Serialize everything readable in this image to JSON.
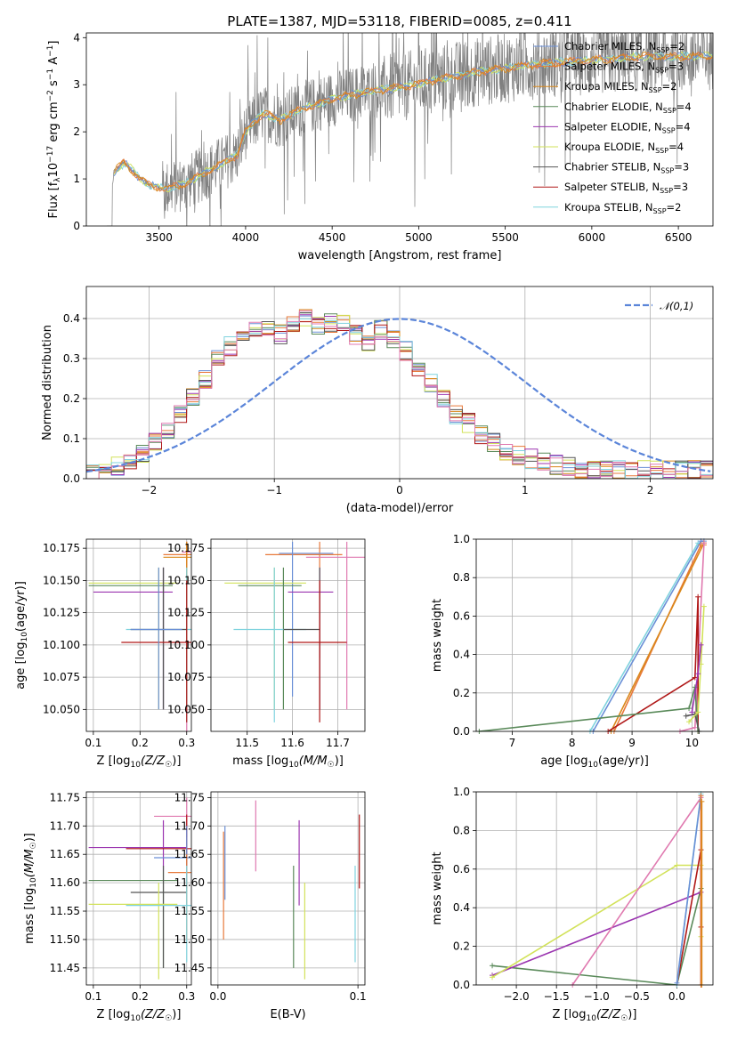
{
  "figure": {
    "title": "PLATE=1387, MJD=53118, FIBERID=0085, z=0.411"
  },
  "colors": {
    "chabrier_miles": "#6a8fd6",
    "salpeter_miles": "#e8793a",
    "kroupa_miles": "#d9881a",
    "chabrier_elodie": "#5a8a5a",
    "salpeter_elodie": "#9b35b0",
    "kroupa_elodie": "#d2e25a",
    "chabrier_stelib": "#555555",
    "salpeter_stelib": "#b01818",
    "kroupa_stelib": "#7fd3de",
    "pink": "#e07ab0",
    "gray_data": "#808080",
    "normal_curve": "#5b85d9"
  },
  "chart_data": [
    {
      "id": "spectrum",
      "type": "line",
      "xlabel": "wavelength [Angstrom, rest frame]",
      "ylabel": "Flux [f_λ 10^-17 erg cm^-2 s^-1 A^-1]",
      "xlim": [
        3080,
        6700
      ],
      "ylim": [
        0,
        4.1
      ],
      "xticks": [
        3500,
        4000,
        4500,
        5000,
        5500,
        6000,
        6500
      ],
      "yticks": [
        0,
        1,
        2,
        3,
        4
      ],
      "grid": false,
      "legend_position": "top-right",
      "continuum_nodes": {
        "x": [
          3080,
          3200,
          3240,
          3300,
          3380,
          3450,
          3550,
          3650,
          3750,
          3850,
          3950,
          4000,
          4100,
          4200,
          4300,
          4500,
          4700,
          4900,
          5100,
          5300,
          5500,
          5700,
          5900,
          6100,
          6300,
          6500,
          6700
        ],
        "y": [
          0,
          0,
          1.15,
          1.35,
          1.05,
          0.85,
          0.8,
          0.9,
          1.1,
          1.3,
          1.5,
          2.0,
          2.4,
          2.25,
          2.45,
          2.7,
          2.85,
          2.95,
          3.1,
          3.25,
          3.35,
          3.45,
          3.5,
          3.55,
          3.6,
          3.6,
          3.6
        ]
      },
      "series": [
        {
          "name": "Chabrier MILES, N_SSP=2"
        },
        {
          "name": "Salpeter MILES, N_SSP=3"
        },
        {
          "name": "Kroupa MILES, N_SSP=2"
        },
        {
          "name": "Chabrier ELODIE, N_SSP=4"
        },
        {
          "name": "Salpeter ELODIE, N_SSP=4"
        },
        {
          "name": "Kroupa ELODIE, N_SSP=4"
        },
        {
          "name": "Chabrier STELIB, N_SSP=3"
        },
        {
          "name": "Salpeter STELIB, N_SSP=3"
        },
        {
          "name": "Kroupa STELIB, N_SSP=2"
        }
      ]
    },
    {
      "id": "residuals",
      "type": "line",
      "xlabel": "(data-model)/error",
      "ylabel": "Normed distribution",
      "xlim": [
        -2.5,
        2.5
      ],
      "ylim": [
        0,
        0.48
      ],
      "xticks": [
        -2,
        -1,
        0,
        1,
        2
      ],
      "yticks": [
        0.0,
        0.1,
        0.2,
        0.3,
        0.4
      ],
      "grid": true,
      "legend_position": "top-right",
      "legend": "N(0,1)",
      "bin_width": 0.1,
      "histogram_base": [
        0.01,
        0.015,
        0.02,
        0.02,
        0.03,
        0.035,
        0.045,
        0.05,
        0.06,
        0.07,
        0.09,
        0.11,
        0.12,
        0.14,
        0.16,
        0.18,
        0.2,
        0.22,
        0.25,
        0.28,
        0.3,
        0.32,
        0.33,
        0.34,
        0.36,
        0.37,
        0.38,
        0.39,
        0.38,
        0.37,
        0.36,
        0.37,
        0.39,
        0.4,
        0.4,
        0.39,
        0.38,
        0.37,
        0.39,
        0.41,
        0.39,
        0.37,
        0.36,
        0.35,
        0.34,
        0.35,
        0.37,
        0.36,
        0.35,
        0.34,
        0.32,
        0.3,
        0.28,
        0.26,
        0.24,
        0.22,
        0.2,
        0.18,
        0.16,
        0.15,
        0.14,
        0.12,
        0.11,
        0.1,
        0.09,
        0.08,
        0.07,
        0.065,
        0.06,
        0.055,
        0.05,
        0.045,
        0.04,
        0.04,
        0.035,
        0.03,
        0.03,
        0.03,
        0.025,
        0.025,
        0.02,
        0.02,
        0.02,
        0.02,
        0.02,
        0.02,
        0.02,
        0.02,
        0.02,
        0.02,
        0.02,
        0.02,
        0.02,
        0.02,
        0.02,
        0.02,
        0.02,
        0.02,
        0.02,
        0.02
      ],
      "histogram_start": -2.5
    },
    {
      "id": "age_vs_Z",
      "type": "scatter",
      "xlabel": "Z [log10(Z/Z_sun)]",
      "ylabel": "age [log10(age/yr)]",
      "xlim": [
        0.085,
        0.31
      ],
      "ylim": [
        10.033,
        10.182
      ],
      "xticks": [
        0.1,
        0.2,
        0.3
      ],
      "yticks": [
        10.05,
        10.075,
        10.1,
        10.125,
        10.15,
        10.175
      ],
      "grid": true,
      "points": [
        {
          "x": 0.3,
          "y": 10.172,
          "xerr": [
            0.29,
            0.31
          ],
          "yerr": [
            10.03,
            10.18
          ],
          "c": "pink"
        },
        {
          "x": 0.3,
          "y": 10.17,
          "xerr": [
            0.25,
            0.31
          ],
          "yerr": [
            10.09,
            10.18
          ],
          "c": "salpeter_miles"
        },
        {
          "x": 0.3,
          "y": 10.168,
          "xerr": [
            0.25,
            0.31
          ],
          "yerr": [
            10.05,
            10.18
          ],
          "c": "kroupa_miles"
        },
        {
          "x": 0.24,
          "y": 10.148,
          "xerr": [
            0.09,
            0.28
          ],
          "yerr": [
            10.05,
            10.16
          ],
          "c": "kroupa_elodie"
        },
        {
          "x": 0.25,
          "y": 10.146,
          "xerr": [
            0.09,
            0.27
          ],
          "yerr": [
            10.05,
            10.16
          ],
          "c": "chabrier_elodie"
        },
        {
          "x": 0.25,
          "y": 10.141,
          "xerr": [
            0.1,
            0.27
          ],
          "yerr": [
            10.05,
            10.16
          ],
          "c": "salpeter_elodie"
        },
        {
          "x": 0.3,
          "y": 10.112,
          "xerr": [
            0.17,
            0.31
          ],
          "yerr": [
            10.04,
            10.16
          ],
          "c": "kroupa_stelib"
        },
        {
          "x": 0.25,
          "y": 10.112,
          "xerr": [
            0.18,
            0.3
          ],
          "yerr": [
            10.05,
            10.16
          ],
          "c": "chabrier_stelib"
        },
        {
          "x": 0.3,
          "y": 10.102,
          "xerr": [
            0.16,
            0.31
          ],
          "yerr": [
            10.04,
            10.15
          ],
          "c": "salpeter_stelib"
        },
        {
          "x": 0.24,
          "y": 10.112,
          "xerr": [
            0.18,
            0.29
          ],
          "yerr": [
            10.05,
            10.16
          ],
          "c": "chabrier_miles"
        }
      ]
    },
    {
      "id": "age_vs_mass",
      "type": "scatter",
      "xlabel": "mass [log10(M/M_sun)]",
      "ylabel": "",
      "xlim": [
        11.42,
        11.76
      ],
      "ylim": [
        10.033,
        10.182
      ],
      "xticks": [
        11.5,
        11.6,
        11.7
      ],
      "yticks": [
        10.05,
        10.075,
        10.1,
        10.125,
        10.15,
        10.175
      ],
      "grid": true,
      "points": [
        {
          "x": 11.66,
          "y": 10.17,
          "xerr": [
            11.54,
            11.71
          ],
          "yerr": [
            10.09,
            10.18
          ],
          "c": "salpeter_miles"
        },
        {
          "x": 11.72,
          "y": 10.168,
          "xerr": [
            11.63,
            11.76
          ],
          "yerr": [
            10.05,
            10.18
          ],
          "c": "pink"
        },
        {
          "x": 11.6,
          "y": 10.171,
          "xerr": [
            11.57,
            11.69
          ],
          "yerr": [
            10.06,
            10.18
          ],
          "c": "chabrier_miles"
        },
        {
          "x": 11.56,
          "y": 10.148,
          "xerr": [
            11.45,
            11.63
          ],
          "yerr": [
            10.05,
            10.16
          ],
          "c": "kroupa_elodie"
        },
        {
          "x": 11.58,
          "y": 10.146,
          "xerr": [
            11.48,
            11.62
          ],
          "yerr": [
            10.05,
            10.16
          ],
          "c": "chabrier_elodie"
        },
        {
          "x": 11.66,
          "y": 10.141,
          "xerr": [
            11.59,
            11.69
          ],
          "yerr": [
            10.05,
            10.16
          ],
          "c": "salpeter_elodie"
        },
        {
          "x": 11.56,
          "y": 10.112,
          "xerr": [
            11.47,
            11.63
          ],
          "yerr": [
            10.04,
            10.16
          ],
          "c": "kroupa_stelib"
        },
        {
          "x": 11.66,
          "y": 10.112,
          "xerr": [
            11.58,
            11.66
          ],
          "yerr": [
            10.05,
            10.16
          ],
          "c": "chabrier_stelib"
        },
        {
          "x": 11.66,
          "y": 10.102,
          "xerr": [
            11.59,
            11.72
          ],
          "yerr": [
            10.04,
            10.15
          ],
          "c": "salpeter_stelib"
        }
      ]
    },
    {
      "id": "weight_vs_age",
      "type": "line",
      "xlabel": "age [log10(age/yr)]",
      "ylabel": "mass weight",
      "xlim": [
        6.4,
        10.35
      ],
      "ylim": [
        0,
        1
      ],
      "xticks": [
        7,
        8,
        9,
        10
      ],
      "yticks": [
        0.0,
        0.2,
        0.4,
        0.6,
        0.8,
        1.0
      ],
      "grid": true,
      "series": [
        {
          "c": "kroupa_stelib",
          "x": [
            8.3,
            10.1,
            10.15
          ],
          "y": [
            0.0,
            0.98,
            0.98
          ]
        },
        {
          "c": "chabrier_miles",
          "x": [
            8.35,
            10.15,
            10.2
          ],
          "y": [
            0.0,
            0.99,
            0.99
          ]
        },
        {
          "c": "salpeter_miles",
          "x": [
            8.7,
            10.15,
            10.2
          ],
          "y": [
            0.0,
            0.97,
            0.97
          ]
        },
        {
          "c": "kroupa_miles",
          "x": [
            8.65,
            10.2,
            10.2
          ],
          "y": [
            0.0,
            0.98,
            0.98
          ]
        },
        {
          "c": "pink",
          "x": [
            9.8,
            10.05,
            10.2
          ],
          "y": [
            0.0,
            0.02,
            0.98
          ]
        },
        {
          "c": "salpeter_stelib",
          "x": [
            8.6,
            10.05,
            10.1,
            10.1
          ],
          "y": [
            0.0,
            0.28,
            0.7,
            0.0
          ]
        },
        {
          "c": "chabrier_elodie",
          "x": [
            6.45,
            9.95,
            10.05,
            10.1
          ],
          "y": [
            0.0,
            0.12,
            0.23,
            0.0
          ]
        },
        {
          "c": "chabrier_stelib",
          "x": [
            9.9,
            10.05,
            10.12
          ],
          "y": [
            0.08,
            0.09,
            0.0
          ]
        },
        {
          "c": "kroupa_elodie",
          "x": [
            9.95,
            10.1,
            10.15,
            10.2
          ],
          "y": [
            0.05,
            0.1,
            0.35,
            0.65
          ]
        },
        {
          "c": "salpeter_elodie",
          "x": [
            10.0,
            10.1,
            10.15
          ],
          "y": [
            0.1,
            0.3,
            0.45
          ]
        }
      ]
    },
    {
      "id": "mass_vs_Z",
      "type": "scatter",
      "xlabel": "Z [log10(Z/Z_sun)]",
      "ylabel": "mass [log10(M/M_sun)]",
      "xlim": [
        0.085,
        0.31
      ],
      "ylim": [
        11.42,
        11.76
      ],
      "xticks": [
        0.1,
        0.2,
        0.3
      ],
      "yticks": [
        11.45,
        11.5,
        11.55,
        11.6,
        11.65,
        11.7,
        11.75
      ],
      "grid": true,
      "points": [
        {
          "x": 0.3,
          "y": 11.717,
          "xerr": [
            0.23,
            0.31
          ],
          "yerr": [
            11.68,
            11.75
          ],
          "c": "pink"
        },
        {
          "x": 0.25,
          "y": 11.662,
          "xerr": [
            0.09,
            0.3
          ],
          "yerr": [
            11.62,
            11.71
          ],
          "c": "salpeter_elodie"
        },
        {
          "x": 0.3,
          "y": 11.66,
          "xerr": [
            0.17,
            0.31
          ],
          "yerr": [
            11.59,
            11.72
          ],
          "c": "salpeter_stelib"
        },
        {
          "x": 0.3,
          "y": 11.644,
          "xerr": [
            0.23,
            0.31
          ],
          "yerr": [
            11.6,
            11.7
          ],
          "c": "chabrier_miles"
        },
        {
          "x": 0.3,
          "y": 11.618,
          "xerr": [
            0.26,
            0.31
          ],
          "yerr": [
            11.5,
            11.65
          ],
          "c": "salpeter_miles"
        },
        {
          "x": 0.25,
          "y": 11.604,
          "xerr": [
            0.09,
            0.28
          ],
          "yerr": [
            11.45,
            11.62
          ],
          "c": "chabrier_elodie"
        },
        {
          "x": 0.25,
          "y": 11.583,
          "xerr": [
            0.18,
            0.3
          ],
          "yerr": [
            11.45,
            11.63
          ],
          "c": "chabrier_stelib"
        },
        {
          "x": 0.24,
          "y": 11.562,
          "xerr": [
            0.09,
            0.28
          ],
          "yerr": [
            11.43,
            11.6
          ],
          "c": "kroupa_elodie"
        },
        {
          "x": 0.3,
          "y": 11.56,
          "xerr": [
            0.17,
            0.31
          ],
          "yerr": [
            11.46,
            11.63
          ],
          "c": "kroupa_stelib"
        }
      ]
    },
    {
      "id": "mass_vs_ebv",
      "type": "scatter",
      "xlabel": "E(B-V)",
      "ylabel": "",
      "xlim": [
        -0.005,
        0.105
      ],
      "ylim": [
        11.42,
        11.76
      ],
      "xticks": [
        0.0,
        0.1
      ],
      "yticks": [
        11.45,
        11.5,
        11.55,
        11.6,
        11.65,
        11.7,
        11.75
      ],
      "grid": true,
      "points": [
        {
          "x": 0.004,
          "y": 11.6,
          "xerr": [
            0.004,
            0.004
          ],
          "yerr": [
            11.5,
            11.69
          ],
          "c": "salpeter_miles"
        },
        {
          "x": 0.005,
          "y": 11.64,
          "xerr": [
            0.005,
            0.005
          ],
          "yerr": [
            11.57,
            11.7
          ],
          "c": "chabrier_miles"
        },
        {
          "x": 0.027,
          "y": 11.68,
          "xerr": [
            0.027,
            0.027
          ],
          "yerr": [
            11.62,
            11.745
          ],
          "c": "pink"
        },
        {
          "x": 0.054,
          "y": 11.55,
          "xerr": [
            0.054,
            0.054
          ],
          "yerr": [
            11.45,
            11.63
          ],
          "c": "chabrier_elodie"
        },
        {
          "x": 0.058,
          "y": 11.65,
          "xerr": [
            0.058,
            0.058
          ],
          "yerr": [
            11.56,
            11.71
          ],
          "c": "salpeter_elodie"
        },
        {
          "x": 0.062,
          "y": 11.52,
          "xerr": [
            0.062,
            0.062
          ],
          "yerr": [
            11.43,
            11.6
          ],
          "c": "kroupa_elodie"
        },
        {
          "x": 0.098,
          "y": 11.55,
          "xerr": [
            0.098,
            0.098
          ],
          "yerr": [
            11.46,
            11.63
          ],
          "c": "kroupa_stelib"
        },
        {
          "x": 0.101,
          "y": 11.65,
          "xerr": [
            0.101,
            0.101
          ],
          "yerr": [
            11.59,
            11.72
          ],
          "c": "salpeter_stelib"
        }
      ]
    },
    {
      "id": "weight_vs_Z",
      "type": "line",
      "xlabel": "Z [log10(Z/Z_sun)]",
      "ylabel": "mass weight",
      "xlim": [
        -2.5,
        0.45
      ],
      "ylim": [
        0,
        1
      ],
      "xticks": [
        -2.0,
        -1.5,
        -1.0,
        -0.5,
        0.0
      ],
      "yticks": [
        0.0,
        0.2,
        0.4,
        0.6,
        0.8,
        1.0
      ],
      "grid": true,
      "series": [
        {
          "c": "chabrier_elodie",
          "x": [
            -2.3,
            0.0,
            0.3,
            0.3
          ],
          "y": [
            0.1,
            0.0,
            0.5,
            0.0
          ]
        },
        {
          "c": "salpeter_elodie",
          "x": [
            -2.3,
            0.3
          ],
          "y": [
            0.05,
            0.48
          ]
        },
        {
          "c": "kroupa_elodie",
          "x": [
            -2.3,
            0.0,
            0.3,
            0.3
          ],
          "y": [
            0.04,
            0.62,
            0.62,
            0.25
          ]
        },
        {
          "c": "pink",
          "x": [
            -1.3,
            0.3,
            0.3
          ],
          "y": [
            0.0,
            0.97,
            0.0
          ]
        },
        {
          "c": "salpeter_stelib",
          "x": [
            0.0,
            0.3,
            0.3
          ],
          "y": [
            0.0,
            0.7,
            0.3
          ]
        },
        {
          "c": "kroupa_stelib",
          "x": [
            0.0,
            0.3
          ],
          "y": [
            0.0,
            0.99
          ]
        },
        {
          "c": "chabrier_miles",
          "x": [
            0.0,
            0.3
          ],
          "y": [
            0.01,
            0.98
          ]
        },
        {
          "c": "salpeter_miles",
          "x": [
            0.3,
            0.3
          ],
          "y": [
            0.0,
            0.98
          ]
        },
        {
          "c": "kroupa_miles",
          "x": [
            0.31,
            0.31
          ],
          "y": [
            0.0,
            0.95
          ]
        }
      ]
    }
  ]
}
